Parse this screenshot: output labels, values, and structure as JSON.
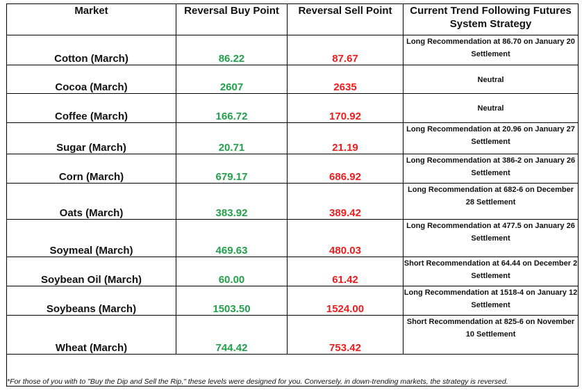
{
  "headers": {
    "market": "Market",
    "buy": "Reversal Buy Point",
    "sell": "Reversal Sell Point",
    "strategy": "Current Trend Following Futures System Strategy"
  },
  "rows": [
    {
      "market": "Cotton (March)",
      "buy": "86.22",
      "sell": "87.67",
      "strategy": "Long Recommendation at 86.70 on January 20 Settlement"
    },
    {
      "market": "Cocoa (March)",
      "buy": "2607",
      "sell": "2635",
      "strategy": "Neutral"
    },
    {
      "market": "Coffee (March)",
      "buy": "166.72",
      "sell": "170.92",
      "strategy": "Neutral"
    },
    {
      "market": "Sugar (March)",
      "buy": "20.71",
      "sell": "21.19",
      "strategy": "Long Recommendation at 20.96 on January 27 Settlement"
    },
    {
      "market": "Corn (March)",
      "buy": "679.17",
      "sell": "686.92",
      "strategy": "Long Recommendation at 386-2 on January 26 Settlement"
    },
    {
      "market": "Oats (March)",
      "buy": "383.92",
      "sell": "389.42",
      "strategy": "Long Recommendation at 682-6 on December 28 Settlement"
    },
    {
      "market": "Soymeal (March)",
      "buy": "469.63",
      "sell": "480.03",
      "strategy": "Long Recommendation at 477.5 on January 26 Settlement"
    },
    {
      "market": "Soybean Oil (March)",
      "buy": "60.00",
      "sell": "61.42",
      "strategy": "Short Recommendation at 64.44 on December 2 Settlement"
    },
    {
      "market": "Soybeans (March)",
      "buy": "1503.50",
      "sell": "1524.00",
      "strategy": "Long Recommendation at 1518-4 on January 12 Settlement"
    },
    {
      "market": "Wheat (March)",
      "buy": "744.42",
      "sell": "753.42",
      "strategy": "Short Recommendation at 825-6 on November 10 Settlement"
    }
  ],
  "footnote": "*For those of you with to \"Buy the Dip and Sell the Rip,\" these levels were designed for you. Conversely, in down-trending markets, the strategy is reversed.",
  "colors": {
    "buy": "#22a04b",
    "sell": "#ee1c1c",
    "text": "#111111",
    "border": "#000000"
  }
}
